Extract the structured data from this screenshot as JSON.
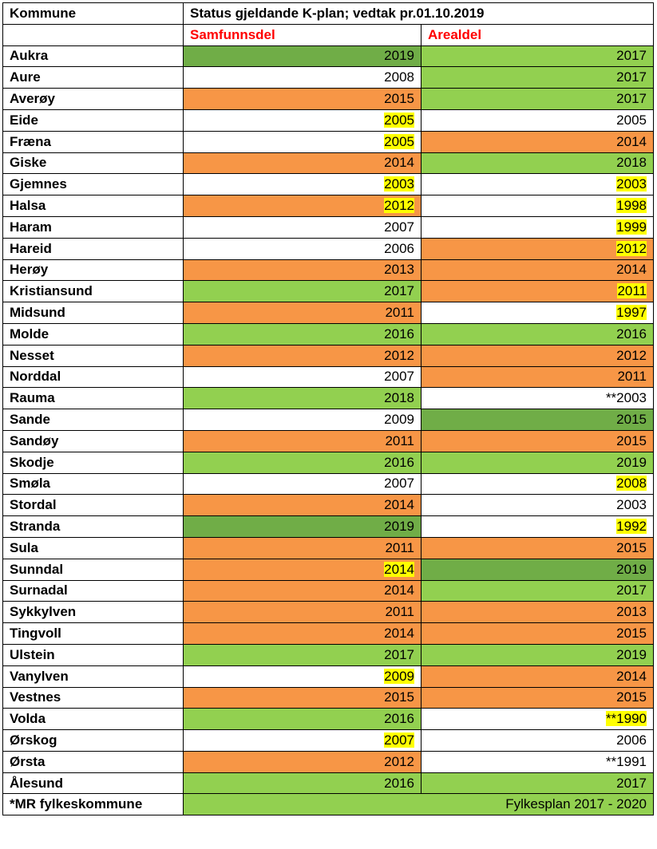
{
  "header": {
    "kommune_label": "Kommune",
    "status_title": "Status gjeldande K-plan; vedtak pr.01.10.2019",
    "samfunnsdel_label": "Samfunnsdel",
    "arealdel_label": "Arealdel"
  },
  "colors": {
    "darkgreen": "#70ad47",
    "green": "#92d050",
    "orange": "#f79646",
    "white": "#ffffff",
    "highlight": "#ffff00",
    "header_red": "#ff0000"
  },
  "rows": [
    {
      "name": "Aukra",
      "samf": {
        "pre": "",
        "text": "2019",
        "bg": "darkgreen",
        "hl": false
      },
      "areal": {
        "pre": "",
        "text": "2017",
        "bg": "green",
        "hl": false
      }
    },
    {
      "name": "Aure",
      "samf": {
        "pre": "",
        "text": "2008",
        "bg": "white",
        "hl": false
      },
      "areal": {
        "pre": "",
        "text": "2017",
        "bg": "green",
        "hl": false
      }
    },
    {
      "name": "Averøy",
      "samf": {
        "pre": "",
        "text": "2015",
        "bg": "orange",
        "hl": false
      },
      "areal": {
        "pre": "",
        "text": "2017",
        "bg": "green",
        "hl": false
      }
    },
    {
      "name": "Eide",
      "samf": {
        "pre": "",
        "text": "2005",
        "bg": "white",
        "hl": true
      },
      "areal": {
        "pre": "",
        "text": "2005",
        "bg": "white",
        "hl": false
      }
    },
    {
      "name": "Fræna",
      "samf": {
        "pre": "",
        "text": "2005",
        "bg": "white",
        "hl": true
      },
      "areal": {
        "pre": "",
        "text": "2014",
        "bg": "orange",
        "hl": false
      }
    },
    {
      "name": "Giske",
      "samf": {
        "pre": "",
        "text": "2014",
        "bg": "orange",
        "hl": false
      },
      "areal": {
        "pre": "",
        "text": "2018",
        "bg": "green",
        "hl": false
      }
    },
    {
      "name": "Gjemnes",
      "samf": {
        "pre": "",
        "text": "2003",
        "bg": "white",
        "hl": true
      },
      "areal": {
        "pre": "",
        "text": "2003",
        "bg": "white",
        "hl": true
      }
    },
    {
      "name": "Halsa",
      "samf": {
        "pre": "",
        "text": "2012",
        "bg": "orange",
        "hl": true
      },
      "areal": {
        "pre": "",
        "text": "1998",
        "bg": "white",
        "hl": true
      }
    },
    {
      "name": "Haram",
      "samf": {
        "pre": "",
        "text": "2007",
        "bg": "white",
        "hl": false
      },
      "areal": {
        "pre": "",
        "text": "1999",
        "bg": "white",
        "hl": true
      }
    },
    {
      "name": "Hareid",
      "samf": {
        "pre": "",
        "text": "2006",
        "bg": "white",
        "hl": false
      },
      "areal": {
        "pre": "",
        "text": "2012",
        "bg": "orange",
        "hl": true
      }
    },
    {
      "name": "Herøy",
      "samf": {
        "pre": "",
        "text": "2013",
        "bg": "orange",
        "hl": false
      },
      "areal": {
        "pre": "",
        "text": "2014",
        "bg": "orange",
        "hl": false
      }
    },
    {
      "name": "Kristiansund",
      "samf": {
        "pre": "",
        "text": "2017",
        "bg": "green",
        "hl": false
      },
      "areal": {
        "pre": "",
        "text": "2011",
        "bg": "orange",
        "hl": true
      }
    },
    {
      "name": "Midsund",
      "samf": {
        "pre": "",
        "text": "2011",
        "bg": "orange",
        "hl": false
      },
      "areal": {
        "pre": "",
        "text": "1997",
        "bg": "white",
        "hl": true
      }
    },
    {
      "name": "Molde",
      "samf": {
        "pre": "",
        "text": "2016",
        "bg": "green",
        "hl": false
      },
      "areal": {
        "pre": "",
        "text": "2016",
        "bg": "green",
        "hl": false
      }
    },
    {
      "name": "Nesset",
      "samf": {
        "pre": "",
        "text": "2012",
        "bg": "orange",
        "hl": false
      },
      "areal": {
        "pre": "",
        "text": "2012",
        "bg": "orange",
        "hl": false
      }
    },
    {
      "name": "Norddal",
      "samf": {
        "pre": "",
        "text": "2007",
        "bg": "white",
        "hl": false
      },
      "areal": {
        "pre": "",
        "text": "2011",
        "bg": "orange",
        "hl": false
      }
    },
    {
      "name": "Rauma",
      "samf": {
        "pre": "",
        "text": "2018",
        "bg": "green",
        "hl": false
      },
      "areal": {
        "pre": "**",
        "text": "2003",
        "bg": "white",
        "hl": false
      }
    },
    {
      "name": "Sande",
      "samf": {
        "pre": "",
        "text": "2009",
        "bg": "white",
        "hl": false
      },
      "areal": {
        "pre": "",
        "text": "2015",
        "bg": "darkgreen",
        "hl": false
      }
    },
    {
      "name": "Sandøy",
      "samf": {
        "pre": "",
        "text": "2011",
        "bg": "orange",
        "hl": false
      },
      "areal": {
        "pre": "",
        "text": "2015",
        "bg": "orange",
        "hl": false
      }
    },
    {
      "name": "Skodje",
      "samf": {
        "pre": "",
        "text": "2016",
        "bg": "green",
        "hl": false
      },
      "areal": {
        "pre": "",
        "text": "2019",
        "bg": "green",
        "hl": false
      }
    },
    {
      "name": "Smøla",
      "samf": {
        "pre": "",
        "text": "2007",
        "bg": "white",
        "hl": false
      },
      "areal": {
        "pre": "",
        "text": "2008",
        "bg": "white",
        "hl": true
      }
    },
    {
      "name": "Stordal",
      "samf": {
        "pre": "",
        "text": "2014",
        "bg": "orange",
        "hl": false
      },
      "areal": {
        "pre": "",
        "text": "2003",
        "bg": "white",
        "hl": false
      }
    },
    {
      "name": "Stranda",
      "samf": {
        "pre": "",
        "text": "2019",
        "bg": "darkgreen",
        "hl": false
      },
      "areal": {
        "pre": "",
        "text": "1992",
        "bg": "white",
        "hl": true
      }
    },
    {
      "name": "Sula",
      "samf": {
        "pre": "",
        "text": "2011",
        "bg": "orange",
        "hl": false
      },
      "areal": {
        "pre": "",
        "text": "2015",
        "bg": "orange",
        "hl": false
      }
    },
    {
      "name": "Sunndal",
      "samf": {
        "pre": "",
        "text": "2014",
        "bg": "orange",
        "hl": true
      },
      "areal": {
        "pre": "",
        "text": "2019",
        "bg": "darkgreen",
        "hl": false
      }
    },
    {
      "name": "Surnadal",
      "samf": {
        "pre": "",
        "text": "2014",
        "bg": "orange",
        "hl": false
      },
      "areal": {
        "pre": "",
        "text": "2017",
        "bg": "green",
        "hl": false
      }
    },
    {
      "name": "Sykkylven",
      "samf": {
        "pre": "",
        "text": "2011",
        "bg": "orange",
        "hl": false
      },
      "areal": {
        "pre": "",
        "text": "2013",
        "bg": "orange",
        "hl": false
      }
    },
    {
      "name": "Tingvoll",
      "samf": {
        "pre": "",
        "text": "2014",
        "bg": "orange",
        "hl": false
      },
      "areal": {
        "pre": "",
        "text": "2015",
        "bg": "orange",
        "hl": false
      }
    },
    {
      "name": "Ulstein",
      "samf": {
        "pre": "",
        "text": "2017",
        "bg": "green",
        "hl": false
      },
      "areal": {
        "pre": "",
        "text": "2019",
        "bg": "green",
        "hl": false
      }
    },
    {
      "name": "Vanylven",
      "samf": {
        "pre": "",
        "text": "2009",
        "bg": "white",
        "hl": true
      },
      "areal": {
        "pre": "",
        "text": "2014",
        "bg": "orange",
        "hl": false
      }
    },
    {
      "name": "Vestnes",
      "samf": {
        "pre": "",
        "text": "2015",
        "bg": "orange",
        "hl": false
      },
      "areal": {
        "pre": "",
        "text": "2015",
        "bg": "orange",
        "hl": false
      }
    },
    {
      "name": "Volda",
      "samf": {
        "pre": "",
        "text": "2016",
        "bg": "green",
        "hl": false
      },
      "areal": {
        "pre": "**",
        "text": "1990",
        "bg": "white",
        "hl": true
      }
    },
    {
      "name": "Ørskog",
      "samf": {
        "pre": "",
        "text": "2007",
        "bg": "white",
        "hl": true
      },
      "areal": {
        "pre": "",
        "text": "2006",
        "bg": "white",
        "hl": false
      }
    },
    {
      "name": "Ørsta",
      "samf": {
        "pre": "",
        "text": "2012",
        "bg": "orange",
        "hl": false
      },
      "areal": {
        "pre": "**",
        "text": "1991",
        "bg": "white",
        "hl": false
      }
    },
    {
      "name": "Ålesund",
      "samf": {
        "pre": "",
        "text": "2016",
        "bg": "green",
        "hl": false
      },
      "areal": {
        "pre": "",
        "text": "2017",
        "bg": "green",
        "hl": false
      }
    }
  ],
  "footer": {
    "label": "*MR fylkeskommune",
    "text": "Fylkesplan 2017 - 2020",
    "bg": "green"
  }
}
